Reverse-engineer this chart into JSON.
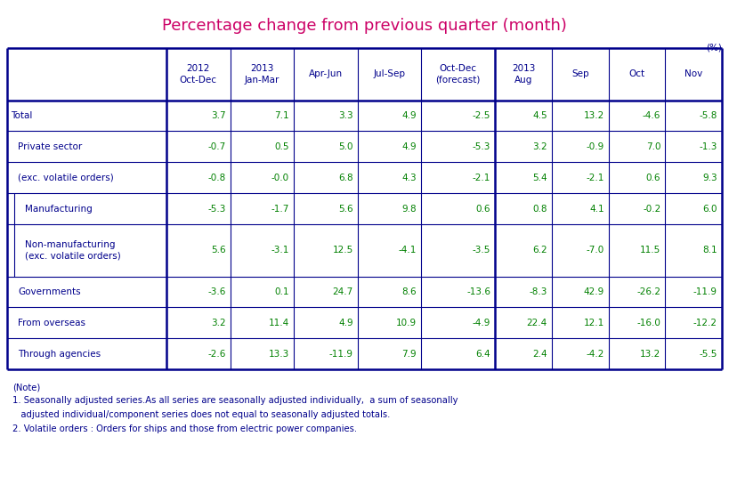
{
  "title": "Percentage change from previous quarter (month)",
  "title_color": "#cc0066",
  "unit_label": "(%)",
  "header_labels": [
    "2012\nOct-Dec",
    "2013\nJan-Mar",
    "Apr-Jun",
    "Jul-Sep",
    "Oct-Dec\n(forecast)",
    "2013\nAug",
    "Sep",
    "Oct",
    "Nov"
  ],
  "row_labels": [
    "Total",
    "Private sector",
    "(exc. volatile orders)",
    "Manufacturing",
    "Non-manufacturing\n(exc. volatile orders)",
    "Governments",
    "From overseas",
    "Through agencies"
  ],
  "row_indent": [
    0,
    1,
    1,
    2,
    2,
    1,
    1,
    1
  ],
  "data": [
    [
      "3.7",
      "7.1",
      "3.3",
      "4.9",
      "-2.5",
      "4.5",
      "13.2",
      "-4.6",
      "-5.8"
    ],
    [
      "-0.7",
      "0.5",
      "5.0",
      "4.9",
      "-5.3",
      "3.2",
      "-0.9",
      "7.0",
      "-1.3"
    ],
    [
      "-0.8",
      "-0.0",
      "6.8",
      "4.3",
      "-2.1",
      "5.4",
      "-2.1",
      "0.6",
      "9.3"
    ],
    [
      "-5.3",
      "-1.7",
      "5.6",
      "9.8",
      "0.6",
      "0.8",
      "4.1",
      "-0.2",
      "6.0"
    ],
    [
      "5.6",
      "-3.1",
      "12.5",
      "-4.1",
      "-3.5",
      "6.2",
      "-7.0",
      "11.5",
      "8.1"
    ],
    [
      "-3.6",
      "0.1",
      "24.7",
      "8.6",
      "-13.6",
      "-8.3",
      "42.9",
      "-26.2",
      "-11.9"
    ],
    [
      "3.2",
      "11.4",
      "4.9",
      "10.9",
      "-4.9",
      "22.4",
      "12.1",
      "-16.0",
      "-12.2"
    ],
    [
      "-2.6",
      "13.3",
      "-11.9",
      "7.9",
      "6.4",
      "2.4",
      "-4.2",
      "13.2",
      "-5.5"
    ]
  ],
  "notes": [
    "(Note)",
    "1. Seasonally adjusted series.As all series are seasonally adjusted individually,  a sum of seasonally",
    "   adjusted individual/component series does not equal to seasonally adjusted totals.",
    "2. Volatile orders : Orders for ships and those from electric power companies."
  ],
  "table_border_color": "#00008B",
  "header_text_color": "#00008B",
  "row_label_color": "#00008B",
  "data_color": "#008000",
  "note_color": "#00008B",
  "bg_color": "#ffffff",
  "fig_width": 8.19,
  "fig_height": 5.63,
  "dpi": 100
}
